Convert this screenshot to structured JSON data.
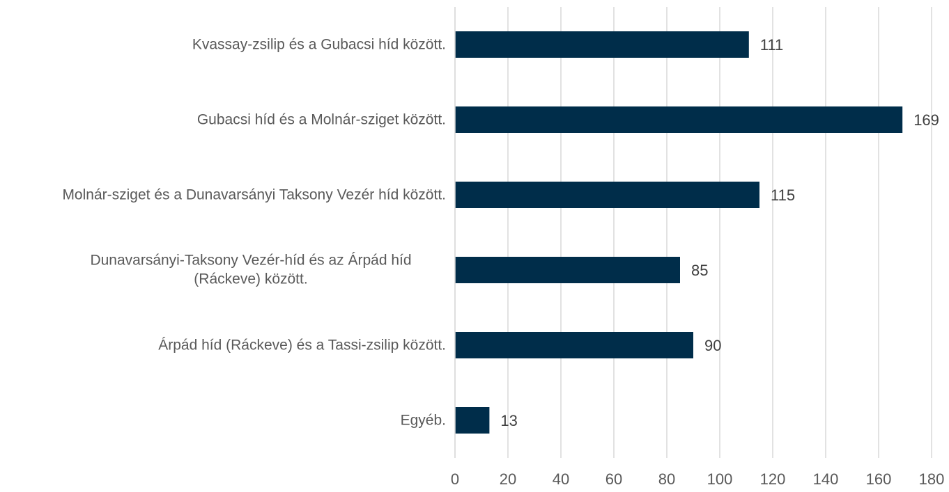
{
  "chart_data": {
    "type": "bar",
    "orientation": "horizontal",
    "categories": [
      "Kvassay-zsilip és a Gubacsi híd között.",
      "Gubacsi híd és a Molnár-sziget között.",
      "Molnár-sziget és a Dunavarsányi Taksony Vezér híd között.",
      "Dunavarsányi-Taksony Vezér-híd és az Árpád híd (Ráckeve) között.",
      "Árpád híd (Ráckeve) és a Tassi-zsilip között.",
      "Egyéb."
    ],
    "values": [
      111,
      169,
      115,
      85,
      90,
      13
    ],
    "color": "#002d4a",
    "xlim": [
      0,
      180
    ],
    "xticks": [
      0,
      20,
      40,
      60,
      80,
      100,
      120,
      140,
      160,
      180
    ],
    "grid": true
  }
}
